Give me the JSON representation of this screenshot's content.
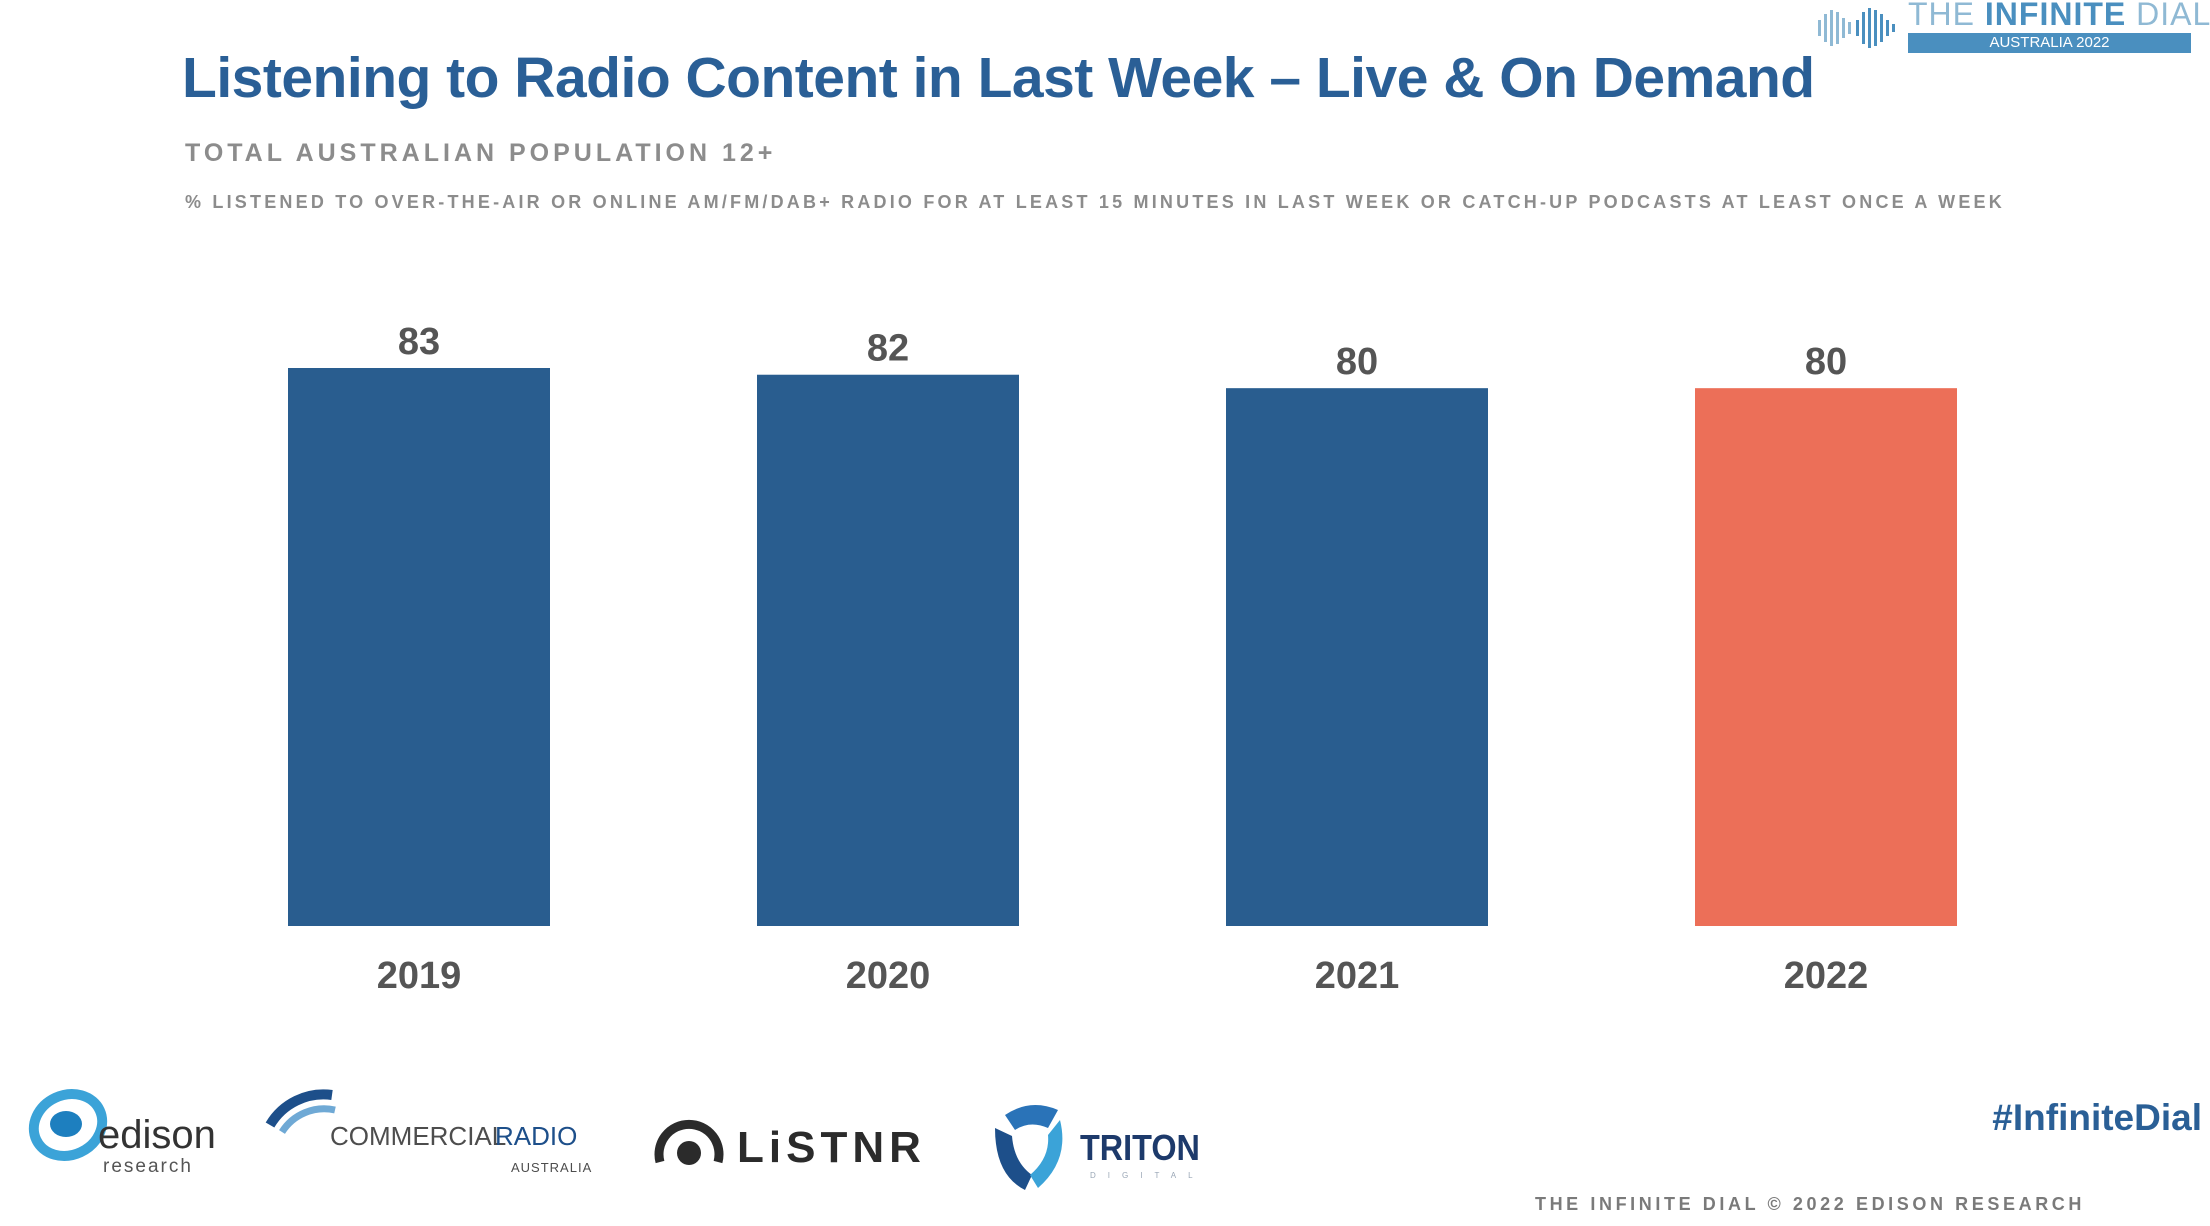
{
  "header": {
    "brand_the": "THE",
    "brand_infinite": "INFINITE",
    "brand_dial": "DIAL",
    "brand_sub": "AUSTRALIA 2022"
  },
  "chart_data": {
    "type": "bar",
    "title": "Listening to Radio Content in Last Week – Live & On Demand",
    "subtitle": "TOTAL AUSTRALIAN POPULATION 12+",
    "note": "% LISTENED TO OVER-THE-AIR OR ONLINE AM/FM/DAB+ RADIO FOR AT LEAST 15 MINUTES IN LAST WEEK OR CATCH-UP PODCASTS AT LEAST ONCE A WEEK",
    "categories": [
      "2019",
      "2020",
      "2021",
      "2022"
    ],
    "values": [
      83,
      82,
      80,
      80
    ],
    "bar_colors": [
      "#295d8f",
      "#295d8f",
      "#295d8f",
      "#ec6f58"
    ],
    "ylim": [
      0,
      83
    ],
    "grid": false,
    "legend": "none"
  },
  "logos": {
    "edison": "edison",
    "edison_sub": "research",
    "cra_commercial": "COMMERCIAL",
    "cra_radio": "RADIO",
    "cra_sub": "AUSTRALIA",
    "listnr": "LiSTNR",
    "triton": "TRITON",
    "triton_sub": "DIGITAL"
  },
  "hashtag": "#InfiniteDial",
  "footer": "THE INFINITE DIAL  © 2022 EDISON RESEARCH",
  "colors": {
    "title": "#2a5f96",
    "muted": "#8c8c8c",
    "bar": "#295d8f",
    "highlight": "#ec6f58"
  }
}
